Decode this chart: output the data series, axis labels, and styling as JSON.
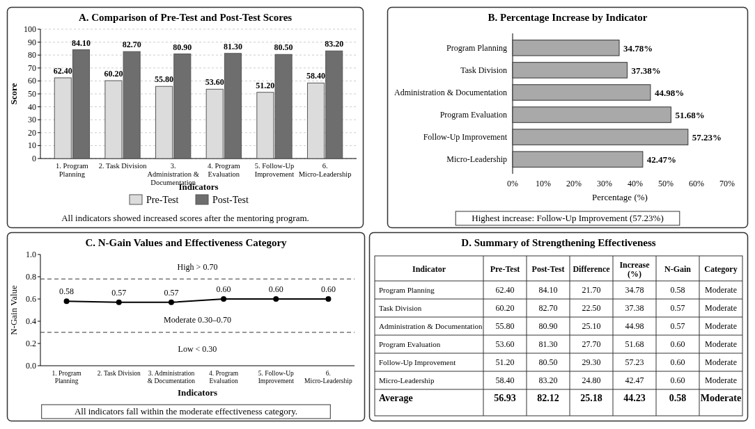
{
  "chart_data": [
    {
      "type": "bar",
      "title": "A. Comparison of Pre-Test and Post-Test Scores",
      "categories": [
        "1. Program Planning",
        "2. Task Division",
        "3. Administration & Documentation",
        "4. Program Evaluation",
        "5. Follow-Up Improvement",
        "6. Micro-Leadership"
      ],
      "series": [
        {
          "name": "Pre-Test",
          "color": "#dcdcdc",
          "values": [
            62.4,
            60.2,
            55.8,
            53.6,
            51.2,
            58.4
          ],
          "value_labels": [
            "62.40",
            "60.20",
            "55.80",
            "53.60",
            "51.20",
            "58.40"
          ]
        },
        {
          "name": "Post-Test",
          "color": "#6e6e6e",
          "values": [
            84.1,
            82.7,
            80.9,
            81.3,
            80.5,
            83.2
          ],
          "value_labels": [
            "84.10",
            "82.70",
            "80.90",
            "81.30",
            "80.50",
            "83.20"
          ]
        }
      ],
      "ylim": [
        0,
        100
      ],
      "yticks": [
        0,
        10,
        20,
        30,
        40,
        50,
        60,
        70,
        80,
        90,
        100
      ],
      "grid": "y",
      "xlabel": "Indicators",
      "ylabel": "Score",
      "legend": "bottom",
      "annotations": [
        "All indicators showed increased scores after the mentoring program."
      ]
    },
    {
      "type": "bar",
      "orientation": "horizontal",
      "title": "B. Percentage Increase by Indicator",
      "categories": [
        "Program Planning",
        "Task Division",
        "Administration & Documentation",
        "Program Evaluation",
        "Follow-Up Improvement",
        "Micro-Leadership"
      ],
      "values": [
        34.78,
        37.38,
        44.98,
        51.68,
        57.23,
        42.47
      ],
      "value_labels": [
        "34.78%",
        "37.38%",
        "44.98%",
        "51.68%",
        "57.23%",
        "42.47%"
      ],
      "color": "#a9a9a9",
      "xlim": [
        0,
        70
      ],
      "xticks": [
        {
          "value": 0,
          "label": "0%"
        },
        {
          "value": 10,
          "label": "10%"
        },
        {
          "value": 20,
          "label": "20%"
        },
        {
          "value": 30,
          "label": "30%"
        },
        {
          "value": 40,
          "label": "40%"
        },
        {
          "value": 50,
          "label": "50%"
        },
        {
          "value": 60,
          "label": "60%"
        },
        {
          "value": 70,
          "label": "70%"
        }
      ],
      "xlabel": "Percentage (%)",
      "annotations": [
        "Highest increase: Follow-Up Improvement (57.23%)"
      ]
    },
    {
      "type": "line",
      "title": "C. N-Gain Values and Effectiveness Category",
      "categories": [
        "1. Program Planning",
        "2. Task Division",
        "3. Administration & Documentation",
        "4. Program Evaluation",
        "5. Follow-Up Improvement",
        "6. Micro-Leadership"
      ],
      "values": [
        0.58,
        0.57,
        0.57,
        0.6,
        0.6,
        0.6
      ],
      "value_labels": [
        "0.58",
        "0.57",
        "0.57",
        "0.60",
        "0.60",
        "0.60"
      ],
      "color": "#000000",
      "marker": "circle",
      "line_style": "solid",
      "ylim": [
        0,
        1
      ],
      "yticks": [
        {
          "value": 0,
          "label": "0.0"
        },
        {
          "value": 0.2,
          "label": "0.2"
        },
        {
          "value": 0.4,
          "label": "0.4"
        },
        {
          "value": 0.6,
          "label": "0.6"
        },
        {
          "value": 0.8,
          "label": "0.8"
        },
        {
          "value": 1,
          "label": "1.0"
        }
      ],
      "xlabel": "Indicators",
      "ylabel": "N-Gain Value",
      "ref_lines": [
        {
          "axis": "y",
          "value": 0.78,
          "line_style": "dashed",
          "color": "#333333"
        },
        {
          "axis": "y",
          "value": 0.3,
          "line_style": "dashed",
          "color": "#333333"
        }
      ],
      "annotations": [
        "High > 0.70",
        "Moderate 0.30–0.70",
        "Low < 0.30",
        "All indicators fall within the moderate effectiveness category."
      ]
    },
    {
      "type": "heatmap",
      "title": "D. Summary of Strengthening Effectiveness",
      "ylabel": "Indicator",
      "categories": [
        "Pre-Test",
        "Post-Test",
        "Difference",
        "Increase (%)",
        "N-Gain",
        "Category"
      ],
      "y_categories": [
        "Program Planning",
        "Task Division",
        "Administration & Documentation",
        "Program Evaluation",
        "Follow-Up Improvement",
        "Micro-Leadership",
        "Average"
      ],
      "cells": [
        [
          62.4,
          84.1,
          21.7,
          34.78,
          0.58,
          null
        ],
        [
          60.2,
          82.7,
          22.5,
          37.38,
          0.57,
          null
        ],
        [
          55.8,
          80.9,
          25.1,
          44.98,
          0.57,
          null
        ],
        [
          53.6,
          81.3,
          27.7,
          51.68,
          0.6,
          null
        ],
        [
          51.2,
          80.5,
          29.3,
          57.23,
          0.6,
          null
        ],
        [
          58.4,
          83.2,
          24.8,
          42.47,
          0.6,
          null
        ],
        [
          56.93,
          82.12,
          25.18,
          44.23,
          0.58,
          null
        ]
      ],
      "cell_labels": [
        [
          "62.40",
          "84.10",
          "21.70",
          "34.78",
          "0.58",
          "Moderate"
        ],
        [
          "60.20",
          "82.70",
          "22.50",
          "37.38",
          "0.57",
          "Moderate"
        ],
        [
          "55.80",
          "80.90",
          "25.10",
          "44.98",
          "0.57",
          "Moderate"
        ],
        [
          "53.60",
          "81.30",
          "27.70",
          "51.68",
          "0.60",
          "Moderate"
        ],
        [
          "51.20",
          "80.50",
          "29.30",
          "57.23",
          "0.60",
          "Moderate"
        ],
        [
          "58.40",
          "83.20",
          "24.80",
          "42.47",
          "0.60",
          "Moderate"
        ],
        [
          "56.93",
          "82.12",
          "25.18",
          "44.23",
          "0.58",
          "Moderate"
        ]
      ]
    }
  ]
}
